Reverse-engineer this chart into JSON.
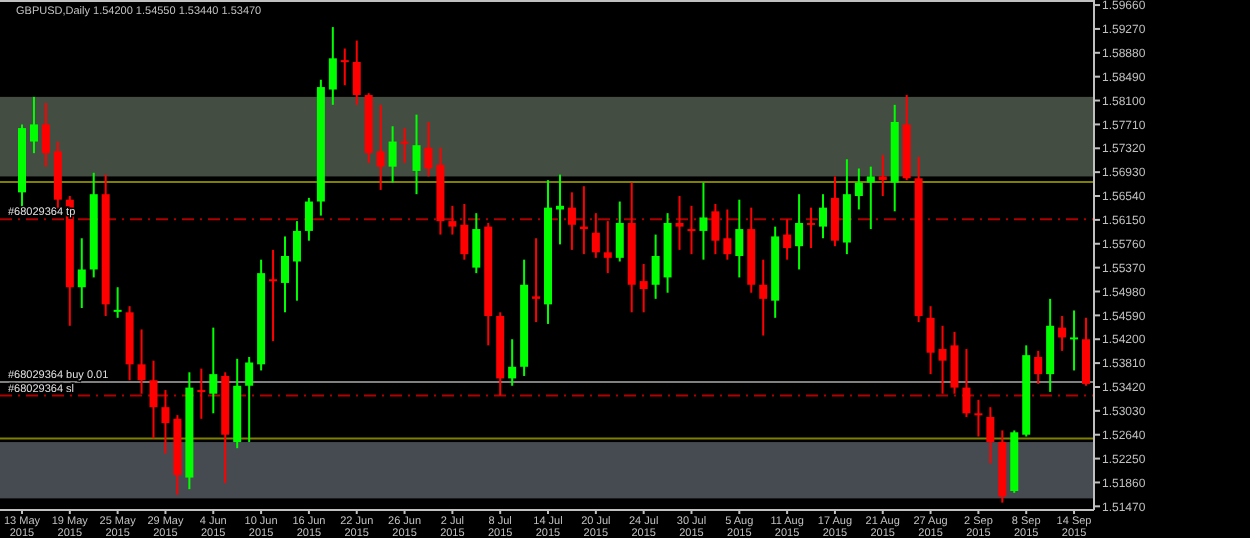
{
  "chart_data": {
    "type": "candlestick",
    "title": "GBPUSD,Daily  1.54200 1.54550 1.53440 1.53470",
    "categories": [
      "13 May 2015",
      null,
      null,
      null,
      "19 May 2015",
      null,
      null,
      null,
      "25 May 2015",
      null,
      null,
      null,
      "29 May 2015",
      null,
      null,
      null,
      "4 Jun 2015",
      null,
      null,
      null,
      "10 Jun 2015",
      null,
      null,
      null,
      "16 Jun 2015",
      null,
      null,
      null,
      "22 Jun 2015",
      null,
      null,
      null,
      "26 Jun 2015",
      null,
      null,
      null,
      "2 Jul 2015",
      null,
      null,
      null,
      "8 Jul 2015",
      null,
      null,
      null,
      "14 Jul 2015",
      null,
      null,
      null,
      "20 Jul 2015",
      null,
      null,
      null,
      "24 Jul 2015",
      null,
      null,
      null,
      "30 Jul 2015",
      null,
      null,
      null,
      "5 Aug 2015",
      null,
      null,
      null,
      "11 Aug 2015",
      null,
      null,
      null,
      "17 Aug 2015",
      null,
      null,
      null,
      "21 Aug 2015",
      null,
      null,
      null,
      "27 Aug 2015",
      null,
      null,
      null,
      "2 Sep 2015",
      null,
      null,
      null,
      "8 Sep 2015",
      null,
      null,
      null,
      "14 Sep 2015",
      null
    ],
    "ohlc": [
      [
        1.566,
        1.5771,
        1.5632,
        1.5765
      ],
      [
        1.5743,
        1.5816,
        1.5724,
        1.5771
      ],
      [
        1.5771,
        1.5806,
        1.5702,
        1.5724
      ],
      [
        1.5727,
        1.5743,
        1.5632,
        1.5648
      ],
      [
        1.5648,
        1.5654,
        1.5442,
        1.5505
      ],
      [
        1.5505,
        1.5585,
        1.5471,
        1.5534
      ],
      [
        1.5534,
        1.5692,
        1.5521,
        1.5657
      ],
      [
        1.5657,
        1.5689,
        1.5458,
        1.5477
      ],
      [
        1.5467,
        1.5505,
        1.5455,
        1.5468
      ],
      [
        1.5464,
        1.5474,
        1.5353,
        1.5379
      ],
      [
        1.5379,
        1.5436,
        1.5331,
        1.5353
      ],
      [
        1.5353,
        1.5385,
        1.5258,
        1.5309
      ],
      [
        1.5309,
        1.5337,
        1.5233,
        1.5283
      ],
      [
        1.529,
        1.5296,
        1.5166,
        1.5198
      ],
      [
        1.5194,
        1.5366,
        1.5175,
        1.5341
      ],
      [
        1.5337,
        1.5372,
        1.529,
        1.5334
      ],
      [
        1.5331,
        1.5439,
        1.5299,
        1.5363
      ],
      [
        1.536,
        1.5366,
        1.5185,
        1.5264
      ],
      [
        1.5252,
        1.5388,
        1.5242,
        1.5344
      ],
      [
        1.5344,
        1.5391,
        1.5252,
        1.5382
      ],
      [
        1.5379,
        1.555,
        1.5369,
        1.5528
      ],
      [
        1.5518,
        1.5566,
        1.5417,
        1.5515
      ],
      [
        1.5512,
        1.5588,
        1.5464,
        1.5556
      ],
      [
        1.5547,
        1.5613,
        1.5483,
        1.5597
      ],
      [
        1.5597,
        1.5651,
        1.5581,
        1.5645
      ],
      [
        1.5645,
        1.5844,
        1.5622,
        1.5832
      ],
      [
        1.5828,
        1.593,
        1.5803,
        1.5879
      ],
      [
        1.5876,
        1.5895,
        1.5835,
        1.5873
      ],
      [
        1.5873,
        1.5908,
        1.5803,
        1.5819
      ],
      [
        1.5819,
        1.5822,
        1.5708,
        1.5724
      ],
      [
        1.5727,
        1.5803,
        1.5664,
        1.5702
      ],
      [
        1.5702,
        1.5768,
        1.5676,
        1.5743
      ],
      [
        1.5743,
        1.5765,
        1.5708,
        1.574
      ],
      [
        1.5695,
        1.5787,
        1.5657,
        1.5737
      ],
      [
        1.5733,
        1.5775,
        1.5686,
        1.5699
      ],
      [
        1.5705,
        1.5733,
        1.5591,
        1.5613
      ],
      [
        1.5613,
        1.5638,
        1.5591,
        1.5604
      ],
      [
        1.5607,
        1.5641,
        1.555,
        1.5559
      ],
      [
        1.5537,
        1.5626,
        1.5528,
        1.56
      ],
      [
        1.5604,
        1.561,
        1.541,
        1.5458
      ],
      [
        1.5458,
        1.5464,
        1.5328,
        1.5356
      ],
      [
        1.5356,
        1.542,
        1.5344,
        1.5375
      ],
      [
        1.5375,
        1.555,
        1.536,
        1.5509
      ],
      [
        1.549,
        1.5585,
        1.5448,
        1.5486
      ],
      [
        1.5477,
        1.568,
        1.5445,
        1.5635
      ],
      [
        1.5632,
        1.5689,
        1.5575,
        1.5638
      ],
      [
        1.5635,
        1.566,
        1.5566,
        1.5607
      ],
      [
        1.5604,
        1.567,
        1.5559,
        1.56
      ],
      [
        1.5594,
        1.5626,
        1.5553,
        1.5562
      ],
      [
        1.5562,
        1.5613,
        1.5528,
        1.5553
      ],
      [
        1.5553,
        1.5645,
        1.5547,
        1.561
      ],
      [
        1.561,
        1.5676,
        1.5464,
        1.5509
      ],
      [
        1.5515,
        1.5543,
        1.5464,
        1.5502
      ],
      [
        1.5509,
        1.5591,
        1.5486,
        1.5556
      ],
      [
        1.5521,
        1.5626,
        1.5496,
        1.561
      ],
      [
        1.561,
        1.5654,
        1.5566,
        1.5604
      ],
      [
        1.56,
        1.5638,
        1.5559,
        1.5597
      ],
      [
        1.5597,
        1.5676,
        1.555,
        1.5619
      ],
      [
        1.5629,
        1.5641,
        1.5559,
        1.5581
      ],
      [
        1.5585,
        1.5632,
        1.555,
        1.5559
      ],
      [
        1.5556,
        1.5648,
        1.5521,
        1.56
      ],
      [
        1.56,
        1.5635,
        1.5496,
        1.5509
      ],
      [
        1.5509,
        1.555,
        1.5426,
        1.5486
      ],
      [
        1.5483,
        1.5604,
        1.5455,
        1.5588
      ],
      [
        1.5591,
        1.5616,
        1.555,
        1.5569
      ],
      [
        1.5572,
        1.5657,
        1.5534,
        1.561
      ],
      [
        1.561,
        1.5635,
        1.5569,
        1.5607
      ],
      [
        1.5604,
        1.5657,
        1.5585,
        1.5635
      ],
      [
        1.5651,
        1.5686,
        1.5572,
        1.5581
      ],
      [
        1.5578,
        1.5714,
        1.5559,
        1.5657
      ],
      [
        1.5654,
        1.5699,
        1.5632,
        1.5676
      ],
      [
        1.5676,
        1.5702,
        1.56,
        1.5686
      ],
      [
        1.5686,
        1.5721,
        1.5654,
        1.568
      ],
      [
        1.5676,
        1.5803,
        1.5629,
        1.5775
      ],
      [
        1.5771,
        1.5819,
        1.568,
        1.5683
      ],
      [
        1.5683,
        1.5718,
        1.5448,
        1.5458
      ],
      [
        1.5455,
        1.5474,
        1.5363,
        1.5398
      ],
      [
        1.5404,
        1.5442,
        1.5331,
        1.5385
      ],
      [
        1.541,
        1.5432,
        1.5331,
        1.5341
      ],
      [
        1.5341,
        1.5404,
        1.5293,
        1.5299
      ],
      [
        1.5299,
        1.5321,
        1.5261,
        1.5296
      ],
      [
        1.5293,
        1.5309,
        1.5217,
        1.5252
      ],
      [
        1.5252,
        1.5271,
        1.5153,
        1.5163
      ],
      [
        1.5172,
        1.5271,
        1.5169,
        1.5268
      ],
      [
        1.5264,
        1.541,
        1.5261,
        1.5394
      ],
      [
        1.5391,
        1.5401,
        1.5347,
        1.5363
      ],
      [
        1.5363,
        1.5486,
        1.5334,
        1.5442
      ],
      [
        1.5439,
        1.5458,
        1.5401,
        1.5423
      ],
      [
        1.542,
        1.5467,
        1.5369,
        1.5423
      ],
      [
        1.542,
        1.5455,
        1.5344,
        1.5347
      ]
    ],
    "colors": [
      "#00ff00",
      "#00ff00",
      "#ff0000",
      "#ff0000",
      "#ff0000",
      "#00ff00",
      "#00ff00",
      "#ff0000",
      "#00ff00",
      "#ff0000",
      "#ff0000",
      "#ff0000",
      "#ff0000",
      "#ff0000",
      "#00ff00",
      "#ff0000",
      "#00ff00",
      "#ff0000",
      "#00ff00",
      "#00ff00",
      "#00ff00",
      "#ff0000",
      "#00ff00",
      "#00ff00",
      "#00ff00",
      "#00ff00",
      "#00ff00",
      "#ff0000",
      "#ff0000",
      "#ff0000",
      "#ff0000",
      "#00ff00",
      "#ff0000",
      "#00ff00",
      "#ff0000",
      "#ff0000",
      "#ff0000",
      "#ff0000",
      "#00ff00",
      "#ff0000",
      "#ff0000",
      "#00ff00",
      "#00ff00",
      "#ff0000",
      "#00ff00",
      "#00ff00",
      "#ff0000",
      "#ff0000",
      "#ff0000",
      "#ff0000",
      "#00ff00",
      "#ff0000",
      "#ff0000",
      "#00ff00",
      "#00ff00",
      "#ff0000",
      "#ff0000",
      "#00ff00",
      "#ff0000",
      "#ff0000",
      "#00ff00",
      "#ff0000",
      "#ff0000",
      "#00ff00",
      "#ff0000",
      "#00ff00",
      "#ff0000",
      "#00ff00",
      "#ff0000",
      "#00ff00",
      "#00ff00",
      "#00ff00",
      "#ff0000",
      "#00ff00",
      "#ff0000",
      "#ff0000",
      "#ff0000",
      "#ff0000",
      "#ff0000",
      "#ff0000",
      "#ff0000",
      "#ff0000",
      "#ff0000",
      "#00ff00",
      "#00ff00",
      "#ff0000",
      "#00ff00",
      "#ff0000",
      "#00ff00",
      "#ff0000"
    ],
    "ylim": [
      1.5141,
      1.5971
    ],
    "yticks": [
      {
        "value": 1.5147,
        "label": "1.51470"
      },
      {
        "value": 1.5186,
        "label": "1.51860"
      },
      {
        "value": 1.5225,
        "label": "1.52250"
      },
      {
        "value": 1.5264,
        "label": "1.52640"
      },
      {
        "value": 1.5303,
        "label": "1.53030"
      },
      {
        "value": 1.5342,
        "label": "1.53420"
      },
      {
        "value": 1.5381,
        "label": "1.53810"
      },
      {
        "value": 1.542,
        "label": "1.54200"
      },
      {
        "value": 1.5459,
        "label": "1.54590"
      },
      {
        "value": 1.5498,
        "label": "1.54980"
      },
      {
        "value": 1.5537,
        "label": "1.55370"
      },
      {
        "value": 1.5576,
        "label": "1.55760"
      },
      {
        "value": 1.5615,
        "label": "1.56150"
      },
      {
        "value": 1.5654,
        "label": "1.56540"
      },
      {
        "value": 1.5693,
        "label": "1.56930"
      },
      {
        "value": 1.5732,
        "label": "1.57320"
      },
      {
        "value": 1.5771,
        "label": "1.57710"
      },
      {
        "value": 1.581,
        "label": "1.58100"
      },
      {
        "value": 1.5849,
        "label": "1.58490"
      },
      {
        "value": 1.5888,
        "label": "1.58880"
      },
      {
        "value": 1.5927,
        "label": "1.59270"
      },
      {
        "value": 1.5966,
        "label": "1.59660"
      }
    ],
    "ref_lines": [
      {
        "axis": "y",
        "value": 1.5677,
        "label": null,
        "color": "#808000",
        "line_style": "solid"
      },
      {
        "axis": "y",
        "value": 1.5616,
        "label": "#68029364 tp",
        "color": "#b00000",
        "line_style": "dashed"
      },
      {
        "axis": "y",
        "value": 1.535,
        "label": "#68029364 buy 0.01",
        "color": "#808080",
        "line_style": "solid"
      },
      {
        "axis": "y",
        "value": 1.5328,
        "label": "#68029364 sl",
        "color": "#b00000",
        "line_style": "dashed"
      },
      {
        "axis": "y",
        "value": 1.5258,
        "label": null,
        "color": "#808000",
        "line_style": "solid"
      }
    ],
    "bands": [
      {
        "axis": "y",
        "from": 1.5686,
        "to": 1.5816,
        "color": "#c1dcb9"
      },
      {
        "axis": "y",
        "from": 1.516,
        "to": 1.5252,
        "color": "#c8d8ea"
      }
    ],
    "grid": false
  }
}
